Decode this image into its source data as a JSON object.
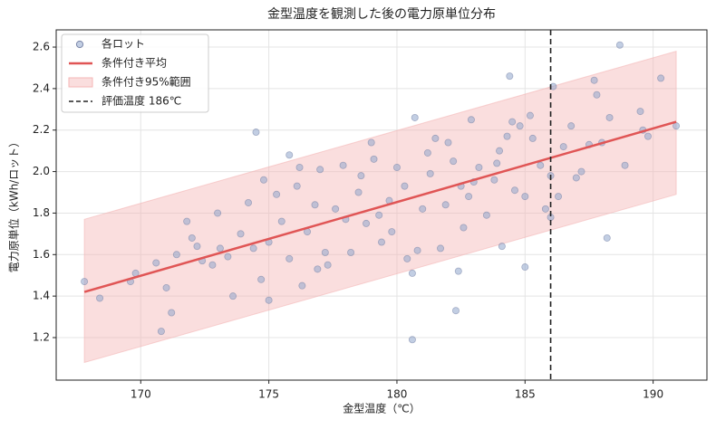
{
  "chart_data": {
    "type": "scatter",
    "title": "金型温度を観測した後の電力原単位分布",
    "xlabel": "金型温度（℃）",
    "ylabel": "電力原単位（kWh/ロット）",
    "xlim": [
      166.7,
      192.1
    ],
    "ylim": [
      0.995,
      2.683
    ],
    "xticks": [
      170,
      175,
      180,
      185,
      190
    ],
    "yticks": [
      1.2,
      1.4,
      1.6,
      1.8,
      {
        "value": 2,
        "label": "2.0"
      },
      2.2,
      2.4,
      2.6
    ],
    "grid": true,
    "legend": "upper left",
    "series": [
      {
        "name": "各ロット",
        "color": "#8fa6cc",
        "x": [
          167.8,
          168.4,
          169.6,
          169.8,
          170.8,
          171.0,
          171.2,
          171.4,
          171.8,
          172.2,
          173.0,
          173.6,
          174.5,
          175.8,
          176.2,
          180.6,
          180.7,
          182.3,
          182.4,
          184.4,
          185.0,
          186.1,
          188.2,
          188.7,
          190.3,
          190.9,
          187.7,
          187.8,
          189.5,
          189.8,
          189.6,
          188.9,
          188.3,
          187.2,
          186.5,
          186.3,
          185.6,
          185.2,
          185.3,
          185.8,
          186.0,
          186.0,
          184.8,
          184.0,
          184.1,
          184.5,
          183.8,
          183.2,
          182.9,
          182.8,
          182.6,
          182.0,
          181.7,
          181.3,
          181.0,
          180.6,
          180.3,
          180.0,
          179.7,
          179.4,
          179.1,
          178.8,
          178.5,
          178.2,
          177.9,
          177.6,
          177.3,
          177.0,
          176.8,
          176.5,
          176.1,
          175.8,
          175.5,
          175.3,
          175.0,
          174.7,
          174.4,
          174.2,
          173.9,
          173.4,
          173.1,
          172.8,
          172.4,
          172.0,
          170.6,
          176.3,
          175.0,
          177.2,
          178.6,
          179.0,
          179.3,
          180.8,
          181.5,
          181.9,
          182.2,
          183.5,
          183.9,
          184.6,
          185.0,
          186.8,
          187.5,
          188.0,
          187.0,
          178.0,
          176.9,
          174.8,
          179.8,
          180.4,
          181.2,
          183.0,
          182.5,
          184.3
        ],
        "values": [
          1.47,
          1.39,
          1.47,
          1.51,
          1.23,
          1.44,
          1.32,
          1.6,
          1.76,
          1.64,
          1.8,
          1.4,
          2.19,
          2.08,
          2.02,
          1.19,
          2.26,
          1.33,
          1.52,
          2.46,
          1.54,
          2.41,
          1.68,
          2.61,
          2.45,
          2.22,
          2.44,
          2.37,
          2.29,
          2.17,
          2.2,
          2.03,
          2.26,
          2.0,
          2.12,
          1.88,
          2.03,
          2.27,
          2.16,
          1.82,
          1.78,
          1.98,
          2.22,
          2.1,
          1.64,
          2.24,
          1.96,
          2.02,
          2.25,
          1.88,
          1.73,
          2.14,
          1.63,
          1.99,
          1.82,
          1.51,
          1.93,
          2.02,
          1.86,
          1.66,
          2.06,
          1.75,
          1.9,
          1.61,
          2.03,
          1.82,
          1.55,
          2.01,
          1.84,
          1.71,
          1.93,
          1.58,
          1.76,
          1.89,
          1.66,
          1.48,
          1.63,
          1.85,
          1.7,
          1.59,
          1.63,
          1.55,
          1.57,
          1.68,
          1.56,
          1.45,
          1.38,
          1.61,
          1.98,
          2.14,
          1.79,
          1.62,
          2.16,
          1.84,
          2.05,
          1.79,
          2.04,
          1.91,
          1.88,
          2.22,
          2.13,
          2.14,
          1.97,
          1.77,
          1.53,
          1.96,
          1.71,
          1.58,
          2.09,
          1.95,
          1.93,
          2.17
        ]
      }
    ],
    "mean_line": {
      "name": "条件付き平均",
      "color": "#e05555",
      "x": [
        167.8,
        190.9
      ],
      "values": [
        1.42,
        2.24
      ]
    },
    "band": {
      "name": "条件付き95%範囲",
      "color": "#f4b6b6",
      "x": [
        167.8,
        190.9
      ],
      "lower": [
        1.08,
        1.89
      ],
      "upper": [
        1.77,
        2.58
      ]
    },
    "vline": {
      "name": "評価温度 186℃",
      "x": 186,
      "color": "#222222"
    }
  }
}
